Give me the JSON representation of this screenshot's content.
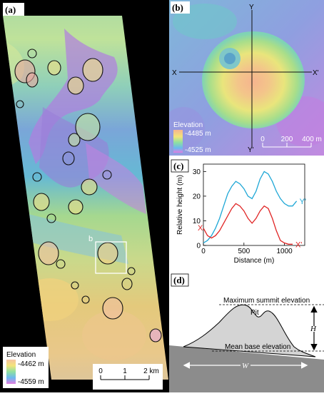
{
  "panel_a": {
    "label": "(a)",
    "inset_marker": "b",
    "legend": {
      "title": "Elevation",
      "max": "-4462 m",
      "min": "-4559 m"
    },
    "scalebar": {
      "ticks": [
        "0",
        "1",
        "2 km"
      ]
    }
  },
  "panel_b": {
    "label": "(b)",
    "axes": {
      "y_top": "Y",
      "y_bottom": "Y'",
      "x_left": "X",
      "x_right": "X'"
    },
    "legend": {
      "title": "Elevation",
      "max": "-4485 m",
      "min": "-4525 m"
    },
    "scalebar": {
      "ticks": [
        "0",
        "200",
        "400 m"
      ]
    }
  },
  "panel_c": {
    "label": "(c)"
  },
  "chart_data": {
    "type": "line",
    "xlabel": "Distance (m)",
    "ylabel": "Relative height (m)",
    "xlim": [
      0,
      1250
    ],
    "ylim": [
      0,
      33
    ],
    "xticks": [
      "0",
      "500",
      "1000"
    ],
    "yticks": [
      "0",
      "10",
      "20",
      "30"
    ],
    "grid": false,
    "series": [
      {
        "name": "Y",
        "end_label": "Y'",
        "color": "#1ea7d6",
        "x": [
          0,
          50,
          100,
          150,
          200,
          250,
          300,
          350,
          400,
          450,
          500,
          550,
          600,
          650,
          700,
          750,
          800,
          850,
          900,
          950,
          1000,
          1050,
          1100,
          1150
        ],
        "y": [
          1,
          2,
          4,
          7,
          11,
          16,
          21,
          24,
          26,
          25,
          23,
          20,
          19,
          22,
          27,
          30,
          29,
          26,
          22,
          19,
          17,
          16,
          16,
          18
        ]
      },
      {
        "name": "X",
        "end_label": "X'",
        "color": "#e02424",
        "x": [
          0,
          50,
          100,
          150,
          200,
          250,
          300,
          350,
          400,
          450,
          500,
          550,
          600,
          650,
          700,
          750,
          800,
          850,
          900,
          950,
          1000,
          1050,
          1100
        ],
        "y": [
          7,
          4,
          3,
          4,
          6,
          9,
          12,
          15,
          17,
          16,
          14,
          11,
          9,
          11,
          14,
          16,
          15,
          11,
          6,
          2,
          1,
          0.5,
          0.5
        ]
      }
    ]
  },
  "panel_d": {
    "label": "(d)",
    "summit_label": "Maximum summit elevation",
    "pit_label": "Pit",
    "base_label": "Mean base elevation",
    "height_symbol": "H",
    "width_symbol": "W"
  }
}
